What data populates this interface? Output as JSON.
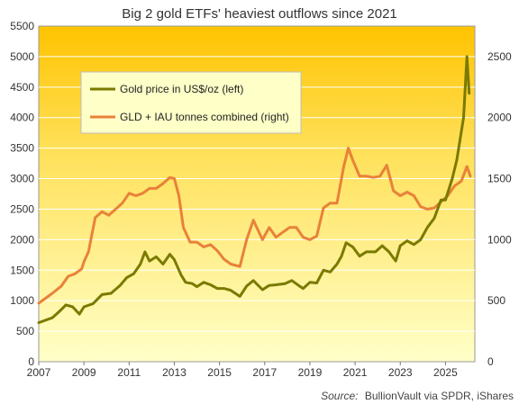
{
  "chart_data": {
    "type": "line",
    "title": "Big 2 gold ETFs' heaviest outflows  since 2021",
    "source_label": "Source:",
    "source_text": "BullionVault via  SPDR, iShares",
    "x_ticks": [
      "2007",
      "2009",
      "2011",
      "2013",
      "2015",
      "2017",
      "2019",
      "2021",
      "2023",
      "2025"
    ],
    "xlim": [
      2007.0,
      2026.3
    ],
    "y_left": {
      "ticks": [
        "0",
        "500",
        "1000",
        "1500",
        "2000",
        "2500",
        "3000",
        "3500",
        "4000",
        "4500",
        "5000",
        "5500"
      ],
      "ylim": [
        0,
        5500
      ]
    },
    "y_right": {
      "ticks": [
        "0",
        "500",
        "1000",
        "1500",
        "2000",
        "2500"
      ],
      "ylim": [
        0,
        2750
      ]
    },
    "legend_position": "top-left",
    "grid": "horizontal",
    "series": [
      {
        "name": "Gold price in US$/oz (left)",
        "axis": "left",
        "color": "#7a7a00",
        "x": [
          2007.0,
          2007.3,
          2007.6,
          2007.9,
          2008.2,
          2008.5,
          2008.8,
          2009.0,
          2009.4,
          2009.8,
          2010.2,
          2010.6,
          2010.9,
          2011.2,
          2011.5,
          2011.7,
          2011.9,
          2012.2,
          2012.5,
          2012.8,
          2013.0,
          2013.3,
          2013.5,
          2013.8,
          2014.0,
          2014.3,
          2014.6,
          2014.9,
          2015.2,
          2015.5,
          2015.9,
          2016.2,
          2016.5,
          2016.9,
          2017.2,
          2017.5,
          2017.9,
          2018.2,
          2018.5,
          2018.7,
          2019.0,
          2019.3,
          2019.6,
          2019.9,
          2020.2,
          2020.4,
          2020.6,
          2020.9,
          2021.2,
          2021.5,
          2021.9,
          2022.2,
          2022.5,
          2022.8,
          2023.0,
          2023.3,
          2023.6,
          2023.9,
          2024.2,
          2024.5,
          2024.8,
          2025.0,
          2025.3,
          2025.5,
          2025.8,
          2025.95,
          2026.05
        ],
        "values": [
          640,
          680,
          720,
          820,
          930,
          900,
          780,
          900,
          950,
          1100,
          1120,
          1250,
          1380,
          1440,
          1600,
          1800,
          1650,
          1720,
          1600,
          1760,
          1670,
          1420,
          1300,
          1280,
          1230,
          1300,
          1260,
          1200,
          1200,
          1170,
          1070,
          1240,
          1330,
          1180,
          1250,
          1260,
          1280,
          1330,
          1250,
          1200,
          1300,
          1290,
          1500,
          1470,
          1600,
          1730,
          1950,
          1880,
          1730,
          1800,
          1800,
          1900,
          1800,
          1650,
          1900,
          1980,
          1920,
          2000,
          2200,
          2350,
          2650,
          2650,
          3000,
          3300,
          4000,
          5000,
          4400
        ]
      },
      {
        "name": "GLD + IAU tonnes combined (right)",
        "axis": "right",
        "color": "#e8823a",
        "x": [
          2007.0,
          2007.3,
          2007.6,
          2008.0,
          2008.3,
          2008.6,
          2008.9,
          2009.0,
          2009.2,
          2009.5,
          2009.8,
          2010.1,
          2010.4,
          2010.7,
          2011.0,
          2011.3,
          2011.6,
          2011.9,
          2012.2,
          2012.5,
          2012.8,
          2013.0,
          2013.2,
          2013.4,
          2013.7,
          2014.0,
          2014.3,
          2014.6,
          2014.9,
          2015.2,
          2015.5,
          2015.9,
          2016.2,
          2016.5,
          2016.9,
          2017.2,
          2017.5,
          2017.8,
          2018.1,
          2018.4,
          2018.7,
          2019.0,
          2019.3,
          2019.6,
          2019.9,
          2020.2,
          2020.5,
          2020.7,
          2020.9,
          2021.2,
          2021.5,
          2021.8,
          2022.1,
          2022.4,
          2022.7,
          2023.0,
          2023.3,
          2023.6,
          2023.9,
          2024.2,
          2024.5,
          2024.8,
          2025.1,
          2025.4,
          2025.7,
          2025.95,
          2026.1
        ],
        "values": [
          480,
          520,
          560,
          620,
          700,
          720,
          760,
          820,
          900,
          1180,
          1230,
          1200,
          1250,
          1300,
          1380,
          1360,
          1380,
          1420,
          1420,
          1460,
          1510,
          1500,
          1360,
          1100,
          980,
          980,
          940,
          960,
          910,
          840,
          800,
          780,
          1000,
          1160,
          1000,
          1100,
          1020,
          1060,
          1100,
          1100,
          1020,
          1000,
          1030,
          1260,
          1300,
          1300,
          1600,
          1750,
          1650,
          1520,
          1520,
          1510,
          1520,
          1610,
          1400,
          1360,
          1390,
          1360,
          1270,
          1250,
          1260,
          1310,
          1360,
          1440,
          1480,
          1600,
          1520
        ]
      }
    ]
  }
}
